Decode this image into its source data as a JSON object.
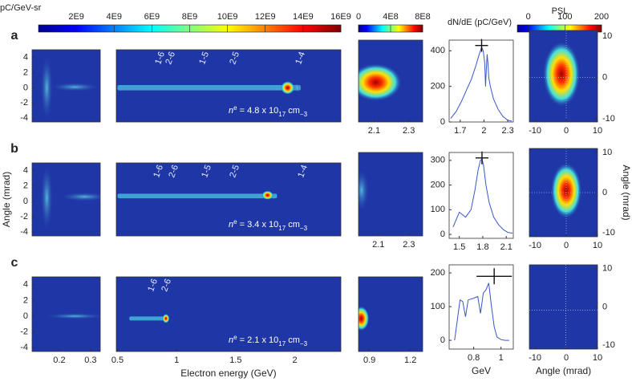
{
  "chart_data": [
    {
      "type": "colorbar",
      "title": "pC/GeV-sr",
      "xlim": [
        0,
        16000000000
      ],
      "xticks": [
        {
          "value": 2000000000,
          "label": "2E9"
        },
        {
          "value": 4000000000,
          "label": "4E9"
        },
        {
          "value": 6000000000,
          "label": "6E9"
        },
        {
          "value": 8000000000,
          "label": "8E9"
        },
        {
          "value": 10000000000,
          "label": "10E9"
        },
        {
          "value": 12000000000,
          "label": "12E9"
        },
        {
          "value": 14000000000,
          "label": "14E9"
        },
        {
          "value": 16000000000,
          "label": "16E9"
        }
      ]
    },
    {
      "type": "colorbar",
      "xlim": [
        0,
        800000000
      ],
      "xticks": [
        0,
        {
          "value": 400000000,
          "label": "4E8"
        },
        {
          "value": 800000000,
          "label": "8E8"
        }
      ]
    },
    {
      "type": "colorbar",
      "title": "PSL",
      "xlim": [
        -30,
        200
      ],
      "xticks": [
        0,
        100,
        200
      ]
    },
    {
      "type": "heatmap",
      "panel_label": "a",
      "xlim": [
        0.113,
        0.331
      ],
      "ylim": [
        -4.5,
        5
      ],
      "yticks": [
        -4,
        -2,
        0,
        2,
        4
      ]
    },
    {
      "type": "heatmap",
      "xlim": [
        0.49,
        2.39
      ],
      "ylim": [
        -4.5,
        5
      ],
      "annotations": [
        "1-6",
        "2-6",
        "1-5",
        "2-5",
        "1-4"
      ],
      "density_label": [
        "n",
        "e",
        " = 4.8 x 10",
        "17",
        " cm",
        "−3"
      ]
    },
    {
      "type": "heatmap",
      "xlim": [
        2.01,
        2.38
      ],
      "ylim": [
        -4.5,
        5
      ],
      "xticks": [
        2.1,
        2.3
      ]
    },
    {
      "type": "line",
      "title": "dN/dE (pC/GeV)",
      "color": "#3a56c8",
      "xlim": [
        1.56,
        2.37
      ],
      "ylim": [
        0,
        460
      ],
      "xticks": [
        1.7,
        2,
        2.3
      ],
      "yticks": [
        0,
        200,
        400
      ],
      "x": [
        1.58,
        1.65,
        1.72,
        1.78,
        1.84,
        1.9,
        1.94,
        1.97,
        1.99,
        2.01,
        2.02,
        2.03,
        2.04,
        2.05,
        2.06,
        2.08,
        2.12,
        2.18,
        2.24,
        2.3,
        2.35
      ],
      "values": [
        20,
        60,
        120,
        180,
        240,
        320,
        380,
        420,
        400,
        330,
        200,
        300,
        380,
        330,
        250,
        200,
        130,
        70,
        30,
        10,
        5
      ],
      "marker": {
        "x": 1.97,
        "y": 430
      }
    },
    {
      "type": "heatmap",
      "xlim": [
        -11.8,
        10
      ],
      "ylim": [
        -10.8,
        11.4
      ],
      "xticks": [
        -10,
        0,
        10
      ],
      "yticks": [
        -10,
        0,
        10
      ],
      "y_axis": "right"
    },
    {
      "type": "heatmap",
      "panel_label": "b",
      "ylabel": "Angle (mrad)",
      "xlim": [
        0.113,
        0.331
      ],
      "ylim": [
        -4.5,
        5
      ],
      "yticks": [
        -4,
        -2,
        0,
        2,
        4
      ]
    },
    {
      "type": "heatmap",
      "xlim": [
        0.49,
        2.39
      ],
      "ylim": [
        -4.5,
        5
      ],
      "annotations": [
        "1-6",
        "2-6",
        "1-5",
        "2-5",
        "1-4"
      ],
      "density_label": [
        "n",
        "e",
        " = 3.4 x 10",
        "17",
        " cm",
        "−3"
      ]
    },
    {
      "type": "heatmap",
      "xlim": [
        1.97,
        2.39
      ],
      "ylim": [
        -4.5,
        5
      ],
      "xticks": [
        2.1,
        2.3
      ]
    },
    {
      "type": "line",
      "color": "#3a56c8",
      "xlim": [
        1.37,
        2.19
      ],
      "ylim": [
        -16,
        332
      ],
      "xticks": [
        1.5,
        1.8,
        2.1
      ],
      "yticks": [
        0,
        100,
        200,
        300
      ],
      "x": [
        1.42,
        1.5,
        1.58,
        1.65,
        1.7,
        1.74,
        1.77,
        1.79,
        1.81,
        1.84,
        1.88,
        1.94,
        2.0,
        2.06,
        2.12,
        2.18
      ],
      "values": [
        30,
        90,
        70,
        100,
        180,
        260,
        300,
        305,
        280,
        200,
        130,
        70,
        40,
        20,
        8,
        5
      ],
      "marker": {
        "x": 1.79,
        "y": 310
      }
    },
    {
      "type": "heatmap",
      "ylabel": "Angle (mrad)",
      "xlim": [
        -11.8,
        10
      ],
      "ylim": [
        -11,
        11
      ],
      "xticks": [
        -10,
        0,
        10
      ],
      "yticks": [
        -10,
        0,
        10
      ],
      "y_axis": "right"
    },
    {
      "type": "heatmap",
      "panel_label": "c",
      "xlim": [
        0.113,
        0.331
      ],
      "ylim": [
        -4.5,
        5
      ],
      "xticks": [
        0.2,
        0.3
      ],
      "yticks": [
        -4,
        -2,
        0,
        2,
        4
      ]
    },
    {
      "type": "heatmap",
      "xlabel": "Electron energy (GeV)",
      "xlim": [
        0.49,
        2.39
      ],
      "ylim": [
        -4.5,
        5
      ],
      "xticks": [
        0.5,
        1,
        1.5,
        2
      ],
      "annotations": [
        "1-6",
        "2-6"
      ],
      "density_label": [
        "n",
        "e",
        " = 2.1 x 10",
        "17",
        " cm",
        "−3"
      ]
    },
    {
      "type": "heatmap",
      "xlim": [
        0.82,
        1.29
      ],
      "ylim": [
        -4.5,
        5
      ],
      "xticks": [
        0.9,
        1.2
      ]
    },
    {
      "type": "line",
      "xlabel": "GeV",
      "color": "#3a56c8",
      "xlim": [
        0.62,
        1.09
      ],
      "ylim": [
        -26,
        224
      ],
      "xticks": [
        0.8,
        1
      ],
      "yticks": [
        0,
        100,
        200
      ],
      "x": [
        0.66,
        0.7,
        0.72,
        0.74,
        0.76,
        0.8,
        0.83,
        0.85,
        0.87,
        0.89,
        0.91,
        0.93,
        0.95,
        0.97,
        1.0,
        1.03,
        1.06
      ],
      "values": [
        0,
        120,
        115,
        70,
        120,
        125,
        130,
        80,
        140,
        150,
        170,
        100,
        40,
        10,
        2,
        0,
        0
      ],
      "marker": {
        "x": 0.95,
        "y": 190
      }
    },
    {
      "type": "heatmap",
      "xlabel": "Angle (mrad)",
      "xlim": [
        -11.8,
        10
      ],
      "ylim": [
        -11,
        11
      ],
      "xticks": [
        -10,
        0,
        10
      ],
      "yticks": [
        -10,
        0,
        10
      ],
      "y_axis": "right"
    }
  ]
}
